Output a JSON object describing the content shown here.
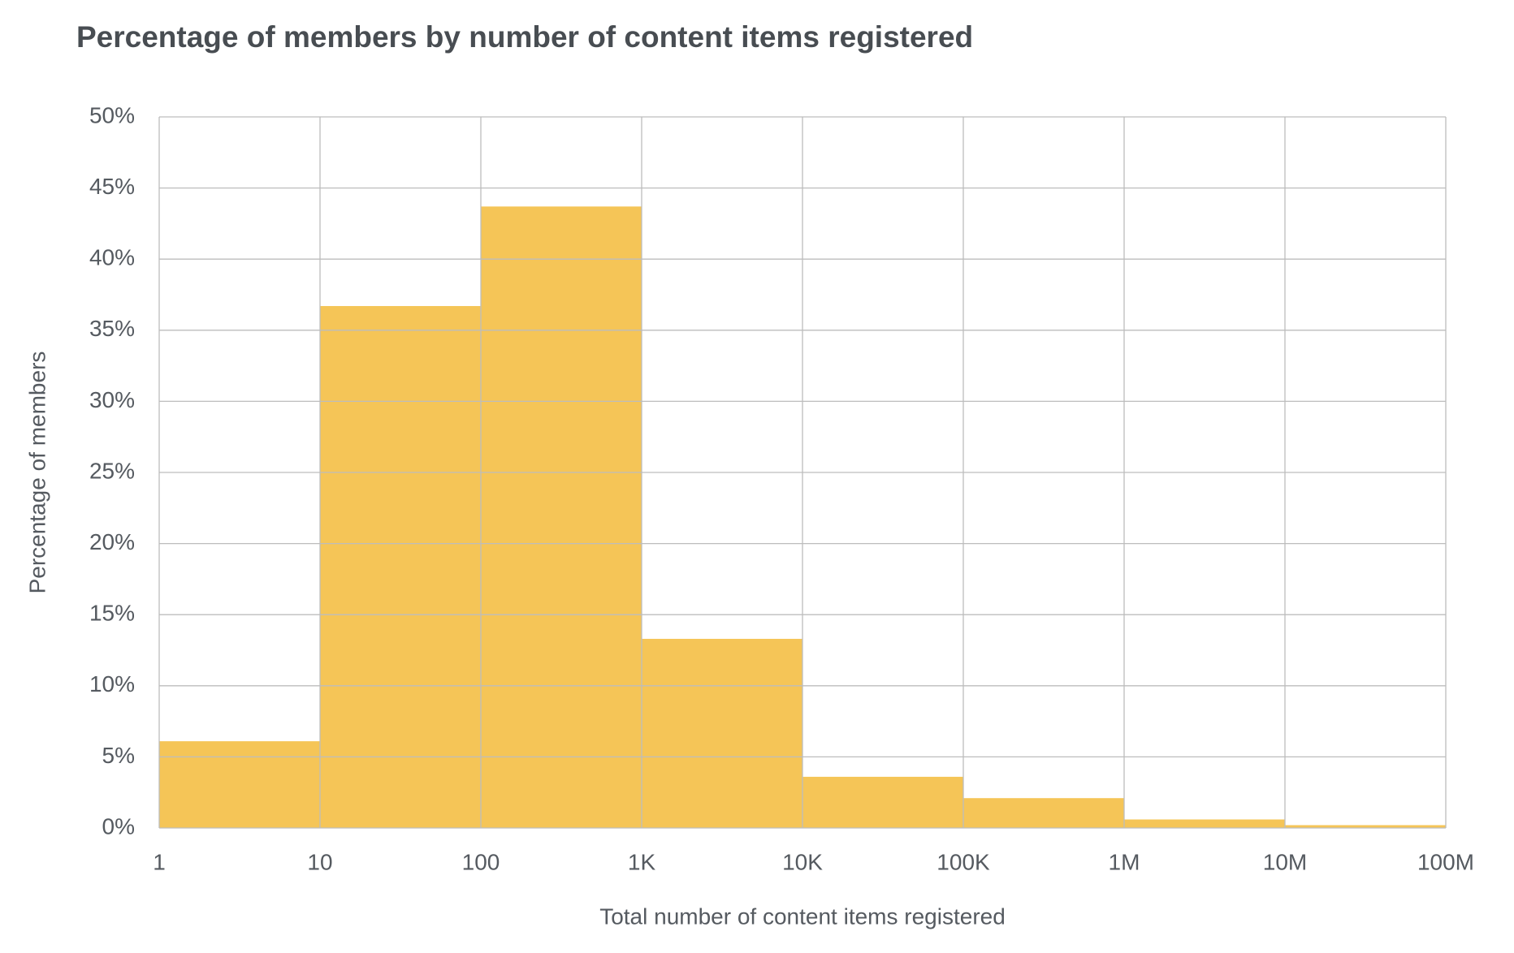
{
  "chart_data": {
    "type": "histogram",
    "title": "Percentage of members by number of content items registered",
    "x_label": "Total number of content items registered",
    "y_label": "Percentage of members",
    "bins": [
      1,
      10,
      100,
      1000,
      10000,
      100000,
      1000000,
      10000000,
      100000000
    ],
    "values": [
      6.1,
      36.7,
      43.7,
      13.3,
      3.6,
      2.1,
      0.6,
      0.2
    ],
    "color": "#f5c557",
    "xscale": "log",
    "xlim": [
      1,
      100000000
    ],
    "xticks": [
      1,
      10,
      100,
      {
        "value": 1000,
        "label": "1K"
      },
      {
        "value": 10000,
        "label": "10K"
      },
      {
        "value": 100000,
        "label": "100K"
      },
      {
        "value": 1000000,
        "label": "1M"
      },
      {
        "value": 10000000,
        "label": "10M"
      },
      {
        "value": 100000000,
        "label": "100M"
      }
    ],
    "ylim": [
      0,
      50
    ],
    "yticks": [
      {
        "value": 0,
        "label": "0%"
      },
      {
        "value": 5,
        "label": "5%"
      },
      {
        "value": 10,
        "label": "10%"
      },
      {
        "value": 15,
        "label": "15%"
      },
      {
        "value": 20,
        "label": "20%"
      },
      {
        "value": 25,
        "label": "25%"
      },
      {
        "value": 30,
        "label": "30%"
      },
      {
        "value": 35,
        "label": "35%"
      },
      {
        "value": 40,
        "label": "40%"
      },
      {
        "value": 45,
        "label": "45%"
      },
      {
        "value": 50,
        "label": "50%"
      }
    ],
    "grid": true
  }
}
